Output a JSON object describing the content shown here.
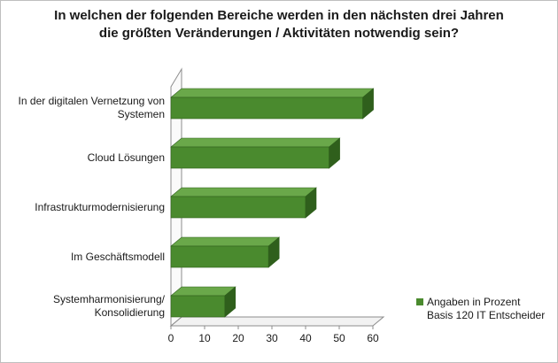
{
  "chart_data": {
    "type": "bar",
    "orientation": "horizontal",
    "title_lines": [
      "In welchen der folgenden Bereiche werden in den nächsten drei Jahren",
      "die größten Veränderungen / Aktivitäten notwendig sein?"
    ],
    "categories": [
      [
        "In der digitalen Vernetzung von",
        "Systemen"
      ],
      [
        "Cloud Lösungen"
      ],
      [
        "Infrastrukturmodernisierung"
      ],
      [
        "Im Geschäftsmodell"
      ],
      [
        "Systemharmonisierung/",
        "Konsolidierung"
      ]
    ],
    "series": [
      {
        "name": "Angaben in Prozent",
        "values": [
          57,
          47,
          40,
          29,
          16
        ]
      }
    ],
    "legend_lines": [
      "Angaben in Prozent",
      "Basis 120 IT Entscheider"
    ],
    "xlim": [
      0,
      60
    ],
    "xticks": [
      "0",
      "10",
      "20",
      "30",
      "40",
      "50",
      "60"
    ],
    "grid": false,
    "legend_position": "right",
    "bar_color": "#4a8a2e",
    "bar_top_color": "#6aa84a",
    "bar_side_color": "#2f5f1c"
  }
}
